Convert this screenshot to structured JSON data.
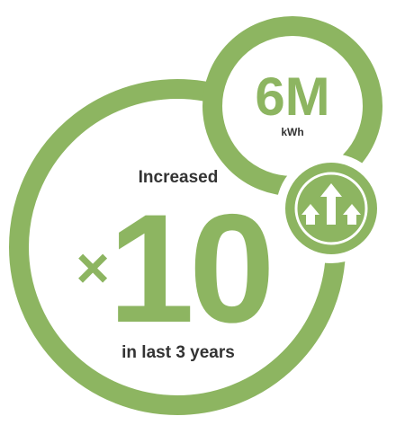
{
  "colors": {
    "brand_green": "#8db561",
    "background": "#ffffff"
  },
  "main_stat": {
    "heading": "Increased",
    "multiplier_symbol": "×",
    "value": "10",
    "caption": "in last 3 years"
  },
  "energy_stat": {
    "value": "6M",
    "unit": "kWh"
  },
  "growth_icon": {
    "icon": "three-up-arrows-icon"
  }
}
